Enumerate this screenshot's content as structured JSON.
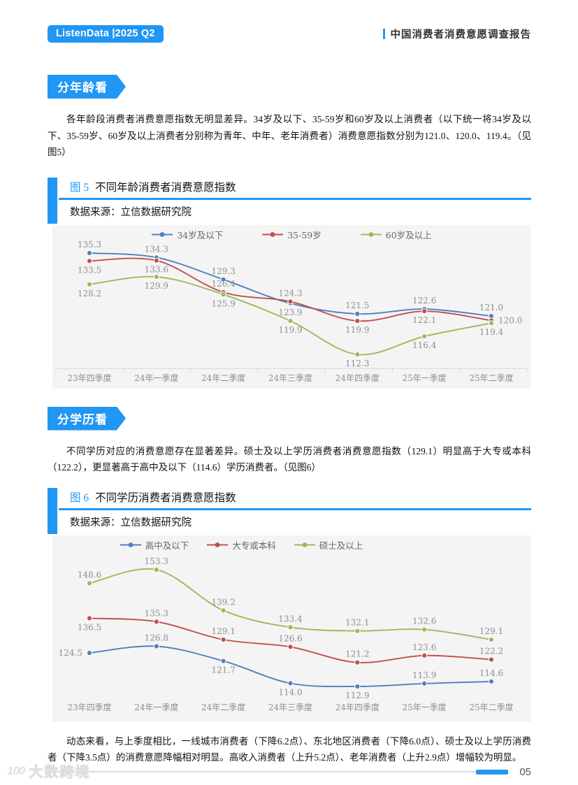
{
  "header": {
    "brand_badge": "ListenData |2025 Q2",
    "report_title": "中国消费者消费意愿调查报告"
  },
  "colors": {
    "accent": "#2196F3",
    "series_blue": "#4F81BD",
    "series_red": "#C0504D",
    "series_green": "#9BBB59",
    "chart_background": "#f4f4f4",
    "label_gray": "#8f8f8f"
  },
  "sections": [
    {
      "badge": "分年龄看",
      "paragraph": "各年龄段消费者消费意愿指数无明显差异。34岁及以下、35-59岁和60岁及以上消费者（以下统一将34岁及以下、35-59岁、60岁及以上消费者分别称为青年、中年、老年消费者）消费意愿指数分别为121.0、120.0、119.4。（见图5）",
      "figure_tag": "图 5",
      "figure_title": "不同年龄消费者消费意愿指数",
      "source": "数据来源：立信数据研究院"
    },
    {
      "badge": "分学历看",
      "paragraph": "不同学历对应的消费意愿存在显著差异。硕士及以上学历消费者消费意愿指数（129.1）明显高于大专或本科（122.2），更显著高于高中及以下（114.6）学历消费者。（见图6）",
      "figure_tag": "图 6",
      "figure_title": "不同学历消费者消费意愿指数",
      "source": "数据来源：立信数据研究院"
    }
  ],
  "chart_data": [
    {
      "type": "line",
      "title": "图5 不同年龄消费者消费意愿指数",
      "categories": [
        "23年四季度",
        "24年一季度",
        "24年二季度",
        "24年三季度",
        "24年四季度",
        "25年一季度",
        "25年二季度"
      ],
      "series": [
        {
          "name": "34岁及以下",
          "color": "#4F81BD",
          "values": [
            135.3,
            134.3,
            129.3,
            123.9,
            121.5,
            122.6,
            121.0
          ]
        },
        {
          "name": "35-59岁",
          "color": "#C0504D",
          "values": [
            133.5,
            133.6,
            126.4,
            124.3,
            119.9,
            122.1,
            120.0
          ]
        },
        {
          "name": "60岁及以上",
          "color": "#9BBB59",
          "values": [
            128.2,
            129.9,
            125.9,
            119.9,
            112.3,
            116.4,
            119.4
          ]
        }
      ],
      "ylim": [
        112.3,
        135.3
      ],
      "grid": false,
      "legend_position": "top",
      "data_labels": true,
      "x_axis_line": true
    },
    {
      "type": "line",
      "title": "图6 不同学历消费者消费意愿指数",
      "categories": [
        "23年四季度",
        "24年一季度",
        "24年二季度",
        "24年三季度",
        "24年四季度",
        "25年一季度",
        "25年二季度"
      ],
      "series": [
        {
          "name": "高中及以下",
          "color": "#4F81BD",
          "values": [
            124.5,
            126.8,
            121.7,
            114.0,
            112.9,
            113.9,
            114.6
          ]
        },
        {
          "name": "大专或本科",
          "color": "#C0504D",
          "values": [
            136.5,
            135.3,
            129.1,
            126.6,
            121.2,
            123.6,
            122.2
          ]
        },
        {
          "name": "硕士及以上",
          "color": "#9BBB59",
          "values": [
            148.6,
            153.3,
            139.2,
            133.4,
            132.1,
            132.6,
            129.1
          ]
        }
      ],
      "ylim": [
        112.9,
        153.3
      ],
      "grid": false,
      "legend_position": "top",
      "data_labels": true,
      "x_axis_line": false
    }
  ],
  "closing_paragraph": "动态来看，与上季度相比，一线城市消费者（下降6.2点）、东北地区消费者（下降6.0点）、硕士及以上学历消费者（下降3.5点）的消费意愿降幅相对明显。高收入消费者（上升5.2点）、老年消费者（上升2.9点）增幅较为明显。",
  "footer": {
    "page_number": "05"
  },
  "watermark": {
    "logo_text": "100",
    "text": "大数跨境"
  }
}
